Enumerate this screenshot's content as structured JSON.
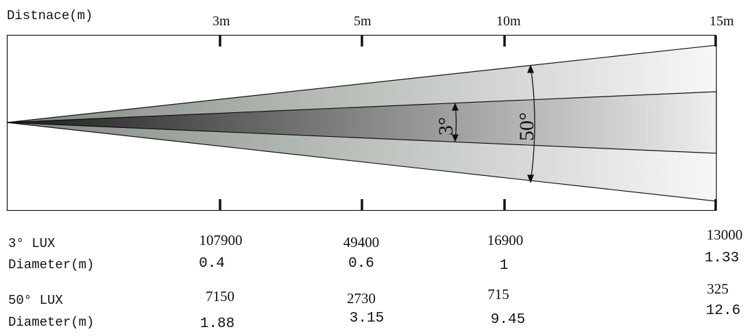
{
  "header": {
    "label": "Distnace(m)"
  },
  "distances": [
    "3m",
    "5m",
    "10m",
    "15m"
  ],
  "beams": {
    "narrow_angle": "3°",
    "wide_angle": "50°"
  },
  "rows": [
    {
      "label": "3° LUX",
      "values": [
        "107900",
        "49400",
        "16900",
        "13000"
      ]
    },
    {
      "label": "Diameter(m)",
      "values": [
        "0.4",
        "0.6",
        "1",
        "1.33"
      ]
    },
    {
      "label": "50° LUX",
      "values": [
        "7150",
        "2730",
        "715",
        "325"
      ]
    },
    {
      "label": "Diameter(m)",
      "values": [
        "1.88",
        "3.15",
        "9.45",
        "12.6"
      ]
    }
  ],
  "colors": {
    "outer_start": "#808a80",
    "outer_end": "#f7f7f7",
    "inner_start": "#1c1c1c",
    "inner_end": "#eeeeee",
    "line": "#111111"
  }
}
